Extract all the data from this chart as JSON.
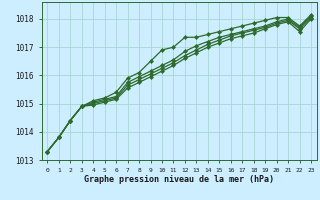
{
  "background_color": "#cceeff",
  "plot_bg_color": "#cceeff",
  "grid_color": "#aad4d4",
  "line_color": "#2d6a2d",
  "marker_color": "#2d6a2d",
  "xlabel": "Graphe pression niveau de la mer (hPa)",
  "ylim": [
    1013.0,
    1018.6
  ],
  "xlim": [
    -0.5,
    23.5
  ],
  "yticks": [
    1013,
    1014,
    1015,
    1016,
    1017,
    1018
  ],
  "xticks": [
    0,
    1,
    2,
    3,
    4,
    5,
    6,
    7,
    8,
    9,
    10,
    11,
    12,
    13,
    14,
    15,
    16,
    17,
    18,
    19,
    20,
    21,
    22,
    23
  ],
  "series": [
    [
      1013.3,
      1013.8,
      1014.4,
      1014.9,
      1015.1,
      1015.2,
      1015.4,
      1015.9,
      1016.1,
      1016.5,
      1016.9,
      1017.0,
      1017.35,
      1017.35,
      1017.45,
      1017.55,
      1017.65,
      1017.75,
      1017.85,
      1017.95,
      1018.05,
      1018.05,
      1017.75,
      1018.15
    ],
    [
      1013.3,
      1013.8,
      1014.4,
      1014.9,
      1015.05,
      1015.15,
      1015.25,
      1015.75,
      1015.95,
      1016.15,
      1016.35,
      1016.55,
      1016.85,
      1017.05,
      1017.2,
      1017.35,
      1017.45,
      1017.55,
      1017.65,
      1017.75,
      1017.9,
      1018.0,
      1017.7,
      1018.1
    ],
    [
      1013.3,
      1013.8,
      1014.4,
      1014.9,
      1015.0,
      1015.1,
      1015.2,
      1015.65,
      1015.85,
      1016.05,
      1016.25,
      1016.45,
      1016.7,
      1016.9,
      1017.1,
      1017.25,
      1017.4,
      1017.5,
      1017.6,
      1017.7,
      1017.85,
      1017.95,
      1017.65,
      1018.05
    ],
    [
      1013.3,
      1013.8,
      1014.4,
      1014.9,
      1014.95,
      1015.05,
      1015.15,
      1015.55,
      1015.75,
      1015.95,
      1016.15,
      1016.35,
      1016.6,
      1016.8,
      1017.0,
      1017.15,
      1017.3,
      1017.4,
      1017.5,
      1017.65,
      1017.8,
      1017.9,
      1017.55,
      1018.0
    ]
  ]
}
